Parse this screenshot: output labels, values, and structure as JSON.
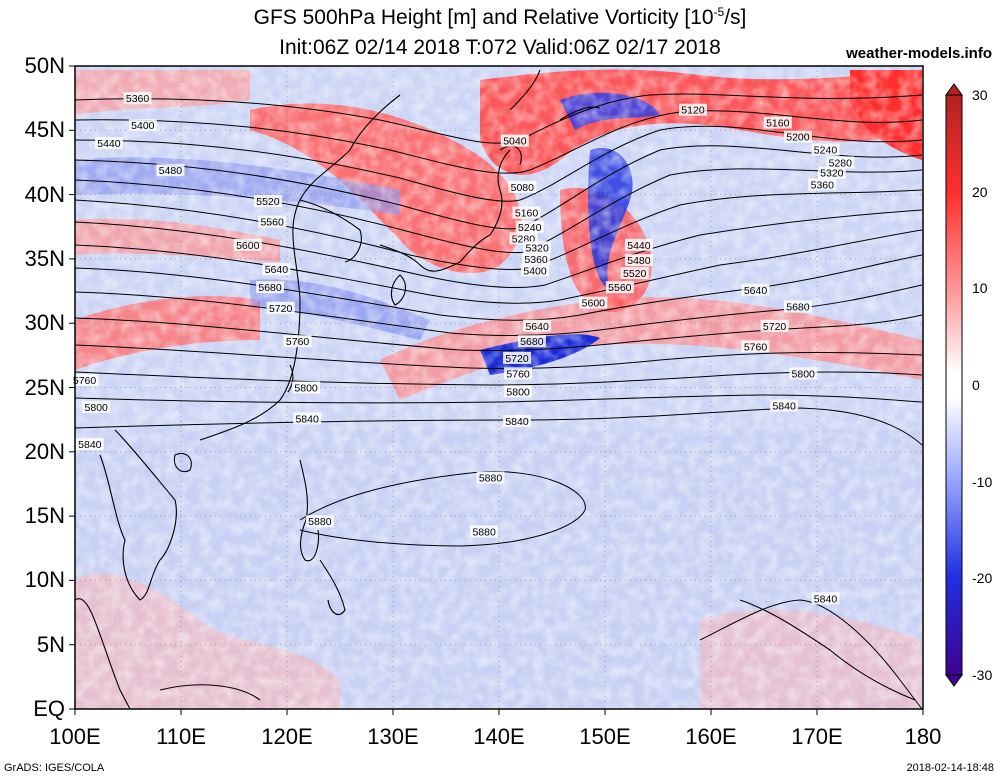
{
  "title": {
    "line1": "GFS 500hPa Height [m] and Relative Vorticity [10",
    "line1_sup": "-5",
    "line1_end": "/s]",
    "line2": "Init:06Z 02/14 2018 T:072 Valid:06Z 02/17 2018"
  },
  "brand": "weather-models.info",
  "footer": {
    "left": "GrADS: IGES/COLA",
    "right": "2018-02-14-18:48"
  },
  "axes": {
    "lat_labels": [
      "50N",
      "45N",
      "40N",
      "35N",
      "30N",
      "25N",
      "20N",
      "15N",
      "10N",
      "5N",
      "EQ"
    ],
    "lat_values": [
      50,
      45,
      40,
      35,
      30,
      25,
      20,
      15,
      10,
      5,
      0
    ],
    "lon_labels": [
      "100E",
      "110E",
      "120E",
      "130E",
      "140E",
      "150E",
      "160E",
      "170E",
      "180"
    ],
    "lon_values": [
      100,
      110,
      120,
      130,
      140,
      150,
      160,
      170,
      180
    ],
    "lon_range": [
      100,
      180
    ],
    "lat_range": [
      0,
      50
    ],
    "grid": "dotted"
  },
  "colorbar": {
    "labels": [
      "30",
      "20",
      "10",
      "0",
      "-10",
      "-20",
      "-30"
    ],
    "values": [
      30,
      20,
      10,
      0,
      -10,
      -20,
      -30
    ],
    "colors": {
      "max": "#b22222",
      "high": "#ff3030",
      "mid": "#ffffff",
      "low": "#3050ff",
      "min": "#400090"
    }
  },
  "contours": [
    {
      "label": "5040",
      "lon": 141.5,
      "lat": 44.2
    },
    {
      "label": "5080",
      "lon": 142.2,
      "lat": 40.6
    },
    {
      "label": "5120",
      "lon": 158.3,
      "lat": 46.6
    },
    {
      "label": "5160",
      "lon": 142.6,
      "lat": 38.6
    },
    {
      "label": "5160",
      "lon": 166.3,
      "lat": 45.6
    },
    {
      "label": "5200",
      "lon": 168.2,
      "lat": 44.5
    },
    {
      "label": "5240",
      "lon": 142.9,
      "lat": 37.5
    },
    {
      "label": "5240",
      "lon": 170.8,
      "lat": 43.5
    },
    {
      "label": "5280",
      "lon": 142.3,
      "lat": 36.6
    },
    {
      "label": "5280",
      "lon": 172.2,
      "lat": 42.5
    },
    {
      "label": "5320",
      "lon": 143.6,
      "lat": 35.9
    },
    {
      "label": "5320",
      "lon": 171.4,
      "lat": 41.7
    },
    {
      "label": "5360",
      "lon": 105.9,
      "lat": 47.5
    },
    {
      "label": "5360",
      "lon": 143.5,
      "lat": 35.0
    },
    {
      "label": "5360",
      "lon": 170.5,
      "lat": 40.8
    },
    {
      "label": "5400",
      "lon": 106.4,
      "lat": 45.4
    },
    {
      "label": "5400",
      "lon": 143.4,
      "lat": 34.1
    },
    {
      "label": "5440",
      "lon": 103.2,
      "lat": 44.0
    },
    {
      "label": "5440",
      "lon": 153.2,
      "lat": 36.1
    },
    {
      "label": "5480",
      "lon": 109.0,
      "lat": 41.9
    },
    {
      "label": "5480",
      "lon": 153.2,
      "lat": 34.9
    },
    {
      "label": "5520",
      "lon": 118.2,
      "lat": 39.5
    },
    {
      "label": "5520",
      "lon": 152.8,
      "lat": 33.9
    },
    {
      "label": "5560",
      "lon": 118.6,
      "lat": 37.9
    },
    {
      "label": "5560",
      "lon": 151.4,
      "lat": 32.8
    },
    {
      "label": "5600",
      "lon": 116.3,
      "lat": 36.1
    },
    {
      "label": "5600",
      "lon": 148.9,
      "lat": 31.6
    },
    {
      "label": "5640",
      "lon": 119.0,
      "lat": 34.2
    },
    {
      "label": "5640",
      "lon": 143.6,
      "lat": 29.8
    },
    {
      "label": "5640",
      "lon": 164.2,
      "lat": 32.6
    },
    {
      "label": "5680",
      "lon": 118.4,
      "lat": 32.8
    },
    {
      "label": "5680",
      "lon": 143.1,
      "lat": 28.6
    },
    {
      "label": "5680",
      "lon": 168.2,
      "lat": 31.3
    },
    {
      "label": "5720",
      "lon": 119.4,
      "lat": 31.2
    },
    {
      "label": "5720",
      "lon": 141.7,
      "lat": 27.3
    },
    {
      "label": "5720",
      "lon": 166.0,
      "lat": 29.8
    },
    {
      "label": "5760",
      "lon": 121.0,
      "lat": 28.6
    },
    {
      "label": "5760",
      "lon": 141.8,
      "lat": 26.1
    },
    {
      "label": "5760",
      "lon": 164.2,
      "lat": 28.2
    },
    {
      "label": "5760",
      "lon": 100.9,
      "lat": 25.6
    },
    {
      "label": "5800",
      "lon": 121.8,
      "lat": 25.0
    },
    {
      "label": "5800",
      "lon": 141.8,
      "lat": 24.7
    },
    {
      "label": "5800",
      "lon": 168.7,
      "lat": 26.1
    },
    {
      "label": "5800",
      "lon": 102.0,
      "lat": 23.5
    },
    {
      "label": "5840",
      "lon": 121.9,
      "lat": 22.6
    },
    {
      "label": "5840",
      "lon": 141.7,
      "lat": 22.4
    },
    {
      "label": "5840",
      "lon": 166.9,
      "lat": 23.6
    },
    {
      "label": "5840",
      "lon": 101.4,
      "lat": 20.6
    },
    {
      "label": "5840",
      "lon": 170.8,
      "lat": 8.6
    },
    {
      "label": "5880",
      "lon": 139.2,
      "lat": 18.0
    },
    {
      "label": "5880",
      "lon": 138.6,
      "lat": 13.8
    },
    {
      "label": "5880",
      "lon": 123.1,
      "lat": 14.6
    }
  ]
}
